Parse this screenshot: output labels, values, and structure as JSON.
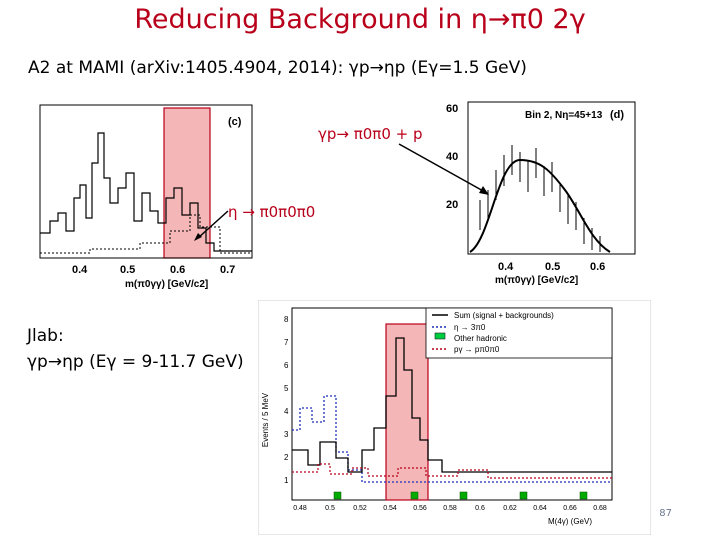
{
  "slide": {
    "title": "Reducing Background in η→π0 2γ",
    "subtitle_prefix": "A2 at MAMI (arXiv:1405.4904, 2014): ",
    "subtitle_reaction": "γp→ηp (Eγ=1.5 GeV)",
    "jlab_label": "Jlab:",
    "jlab_reaction": "γp→ηp (Eγ = 9-11.7 GeV)",
    "page_number": "87"
  },
  "annotations": {
    "gp_to_pi0pi0p": "γp→ π0π0 + p",
    "eta_to_3pi0": "η → π0π0π0"
  },
  "plot_c": {
    "panel_label": "(c)",
    "x_ticks": [
      "0.4",
      "0.5",
      "0.6",
      "0.7"
    ],
    "xlabel": "m(π0γγ) [GeV/c2]"
  },
  "plot_d": {
    "panel_label": "(d)",
    "bin_text": "Bin 2, Nη=45+13",
    "y_ticks": [
      "20",
      "40",
      "60"
    ],
    "x_ticks": [
      "0.4",
      "0.5",
      "0.6"
    ],
    "xlabel": "m(π0γγ) [GeV/c2]"
  },
  "plot_jlab": {
    "ylabel": "Events / 5 MeV",
    "xlabel": "M(4γ) (GeV)",
    "y_ticks": [
      "1",
      "2",
      "3",
      "4",
      "5",
      "6",
      "7",
      "8"
    ],
    "x_ticks": [
      "0.48",
      "0.5",
      "0.52",
      "0.54",
      "0.56",
      "0.58",
      "0.6",
      "0.62",
      "0.64",
      "0.66",
      "0.68"
    ],
    "legend": [
      {
        "label": "Sum (signal + backgrounds)"
      },
      {
        "label": "η → 3π0"
      },
      {
        "label": "Other hadronic"
      },
      {
        "label": "pγ → pπ0π0"
      }
    ]
  },
  "colors": {
    "title": "#b8001a",
    "highlight_band": "#f4b6b6",
    "band_border": "#b8001a",
    "jlab_signal": "#b8001a",
    "jlab_eta": "#1d2fb8",
    "jlab_other": "#00aa00"
  }
}
